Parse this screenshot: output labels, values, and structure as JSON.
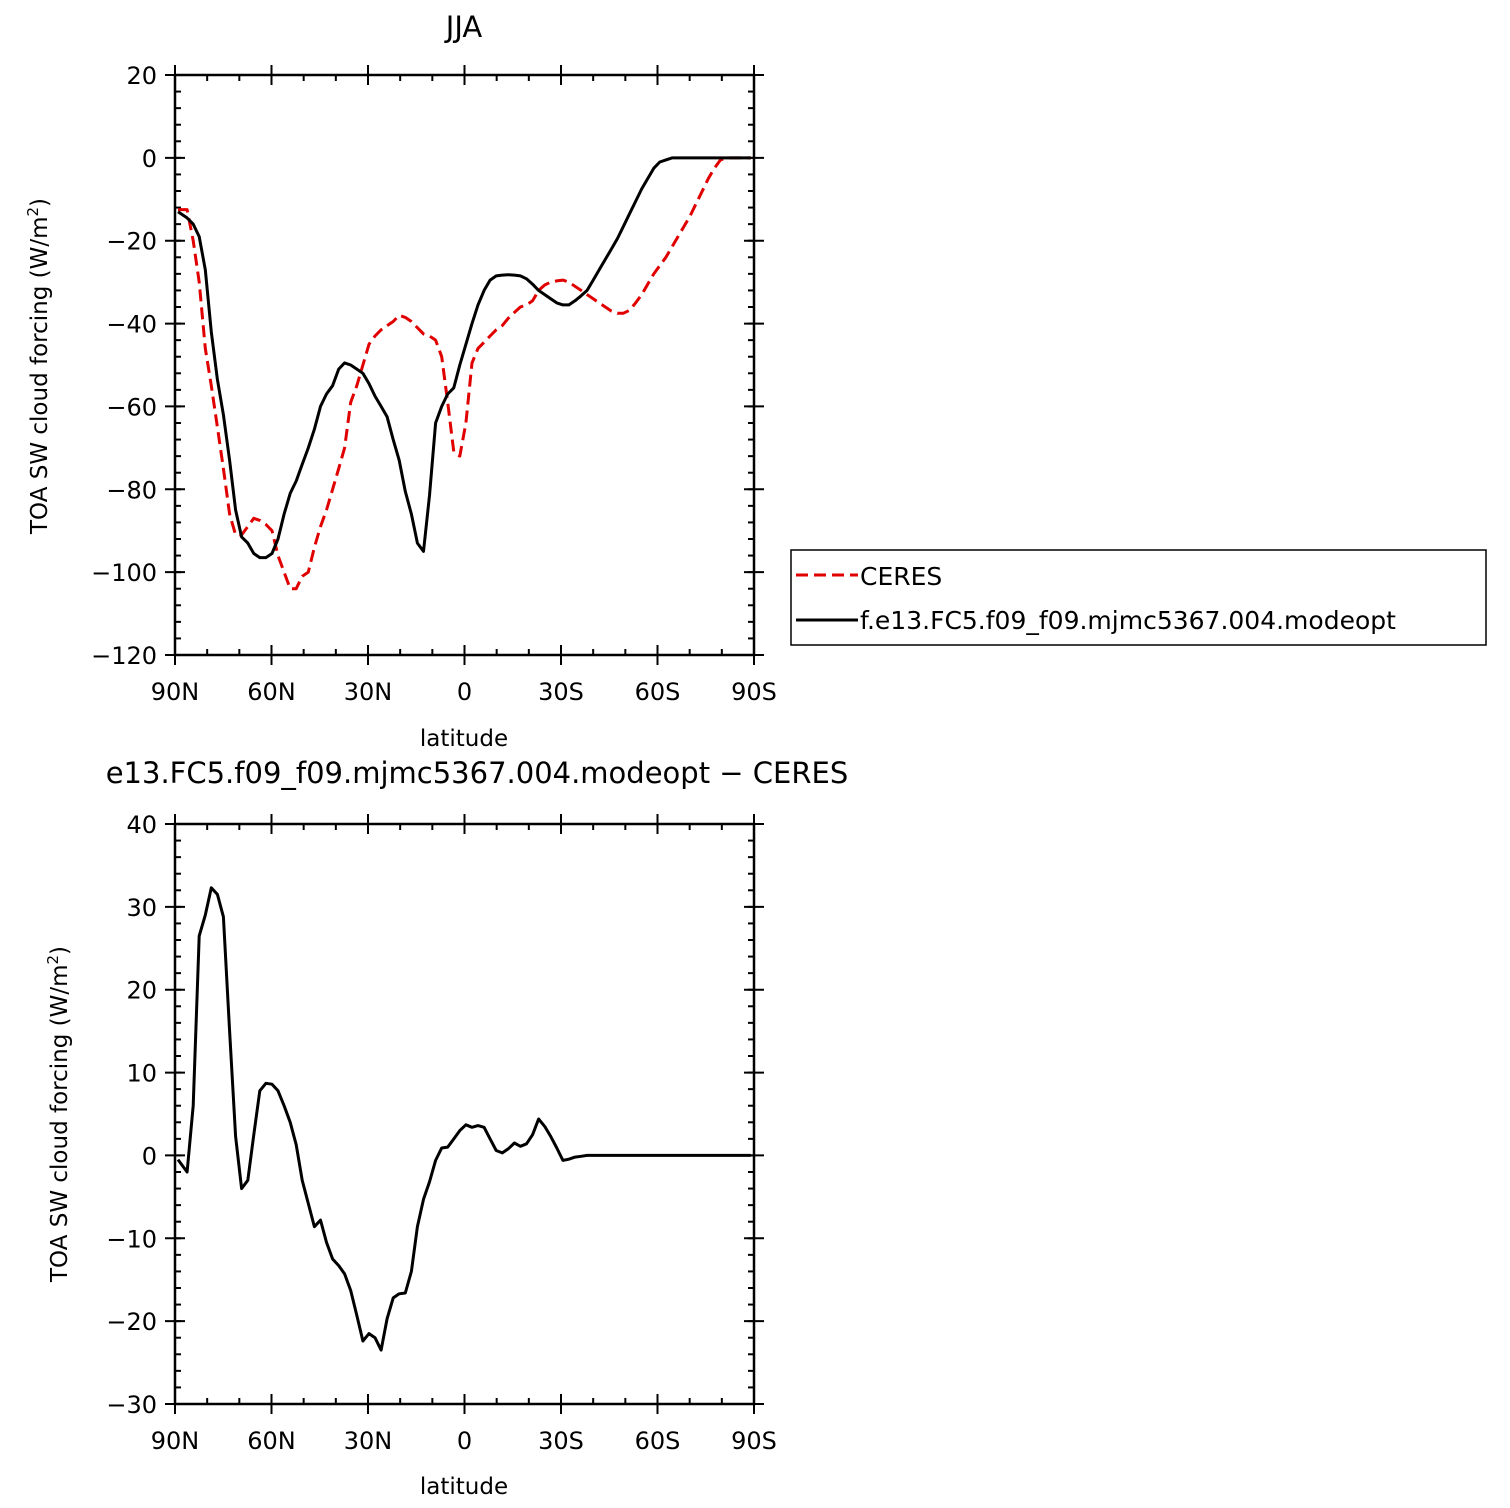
{
  "chart_data": [
    {
      "type": "line",
      "title": "JJA",
      "xlabel": "latitude",
      "ylabel": "TOA SW cloud forcing (W/m",
      "ylabel_sup": "2",
      "ylabel_close": ")",
      "xlim": [
        90,
        -90
      ],
      "ylim": [
        -120,
        20
      ],
      "xticks": [
        90,
        60,
        30,
        0,
        -30,
        -60,
        -90
      ],
      "xtick_labels": [
        "90N",
        "60N",
        "30N",
        "0",
        "30S",
        "60S",
        "90S"
      ],
      "yticks": [
        20,
        0,
        -20,
        -40,
        -60,
        -80,
        -100,
        -120
      ],
      "ytick_labels": [
        "20",
        "0",
        "−20",
        "−40",
        "−60",
        "−80",
        "−100",
        "−120"
      ],
      "grid": false,
      "legend": "right",
      "series": [
        {
          "name": "CERES",
          "color": "#e00000",
          "dash": "dashed",
          "x": [
            89.06,
            86.24,
            84.35,
            82.47,
            80.59,
            78.7,
            76.82,
            74.94,
            73.04,
            71.15,
            69.29,
            67.38,
            65.5,
            63.63,
            61.73,
            59.85,
            57.98,
            56.09,
            54.2,
            52.32,
            50.45,
            48.55,
            46.67,
            44.78,
            42.9,
            41.01,
            39.12,
            37.26,
            35.37,
            33.48,
            31.59,
            29.7,
            27.81,
            25.94,
            24.06,
            22.18,
            20.3,
            18.41,
            16.52,
            14.64,
            12.75,
            10.87,
            8.98,
            7.1,
            5.21,
            3.33,
            1.45,
            -0.44,
            -2.32,
            -4.2,
            -6.09,
            -7.97,
            -9.86,
            -11.74,
            -13.63,
            -15.51,
            -17.39,
            -19.28,
            -21.16,
            -23.05,
            -24.93,
            -26.81,
            -28.7,
            -30.58,
            -32.47,
            -34.35,
            -36.24,
            -38.12,
            -40.0,
            -41.89,
            -43.77,
            -45.66,
            -47.54,
            -49.42,
            -51.31,
            -53.19,
            -55.08,
            -56.96,
            -58.84,
            -60.73,
            -62.61,
            -64.5,
            -66.38,
            -68.27,
            -70.15,
            -72.03,
            -73.92,
            -75.8,
            -77.69,
            -79.57,
            -81.45,
            -83.34,
            -85.22,
            -87.11,
            -88.99
          ],
          "y": [
            -12.5,
            -12.5,
            -20,
            -30,
            -46,
            -55,
            -65,
            -75,
            -86,
            -91,
            -91,
            -89,
            -87,
            -87.5,
            -88.5,
            -90,
            -96,
            -100,
            -104,
            -104,
            -101,
            -100,
            -94,
            -89,
            -85,
            -80,
            -75,
            -70,
            -59,
            -55,
            -50,
            -45,
            -43,
            -41.5,
            -40.5,
            -39.5,
            -38,
            -38.5,
            -39.5,
            -41,
            -42.5,
            -43,
            -44,
            -48,
            -59,
            -71,
            -72,
            -64,
            -49.5,
            -46,
            -44.5,
            -43,
            -41.5,
            -40.5,
            -38.7,
            -37.3,
            -36,
            -35.5,
            -34.5,
            -32,
            -30.7,
            -30,
            -29.7,
            -29.5,
            -30,
            -31,
            -32,
            -33,
            -34,
            -35,
            -36,
            -37,
            -37.5,
            -37.5,
            -36.8,
            -35,
            -33,
            -30.5,
            -28,
            -26,
            -24,
            -21.5,
            -19,
            -16.5,
            -14,
            -11,
            -8,
            -5,
            -2.5,
            -0.5,
            0,
            0,
            0,
            0,
            0
          ]
        },
        {
          "name": "f.e13.FC5.f09_f09.mjmc5367.004.modeopt",
          "color": "#000000",
          "dash": "solid",
          "x": [
            89.06,
            86.24,
            84.35,
            82.47,
            80.59,
            78.7,
            76.82,
            74.94,
            73.04,
            71.15,
            69.29,
            67.38,
            65.5,
            63.63,
            61.73,
            59.85,
            57.98,
            56.09,
            54.2,
            52.32,
            50.45,
            48.55,
            46.67,
            44.78,
            42.9,
            41.01,
            39.12,
            37.26,
            35.37,
            33.48,
            31.59,
            29.7,
            27.81,
            25.94,
            24.06,
            22.18,
            20.3,
            18.41,
            16.52,
            14.64,
            12.75,
            10.87,
            8.98,
            7.1,
            5.21,
            3.33,
            1.45,
            -0.44,
            -2.32,
            -4.2,
            -6.09,
            -7.97,
            -9.86,
            -11.74,
            -13.63,
            -15.51,
            -17.39,
            -19.28,
            -21.16,
            -23.05,
            -24.93,
            -26.81,
            -28.7,
            -30.58,
            -32.47,
            -34.35,
            -36.24,
            -38.12,
            -40.0,
            -41.89,
            -43.77,
            -45.66,
            -47.54,
            -49.42,
            -51.31,
            -53.19,
            -55.08,
            -56.96,
            -58.84,
            -60.73,
            -62.61,
            -64.5,
            -66.38,
            -68.27,
            -70.15,
            -72.03,
            -73.92,
            -75.8,
            -77.69,
            -79.57,
            -81.45,
            -83.34,
            -85.22,
            -87.11,
            -88.99
          ],
          "y": [
            -13,
            -14.5,
            -16,
            -19,
            -27,
            -42,
            -53.5,
            -62,
            -73,
            -85,
            -91.5,
            -93,
            -95.5,
            -96.5,
            -96.5,
            -95.5,
            -92,
            -86,
            -81,
            -78,
            -74,
            -70,
            -65.5,
            -60,
            -57,
            -55,
            -51,
            -49.5,
            -50,
            -51,
            -52,
            -54.5,
            -57.5,
            -60,
            -62.5,
            -68,
            -73,
            -80.5,
            -86,
            -93,
            -95,
            -81.5,
            -64,
            -60,
            -57,
            -55.5,
            -50,
            -45,
            -40,
            -35.5,
            -32,
            -29.5,
            -28.5,
            -28.3,
            -28.2,
            -28.3,
            -28.5,
            -29.2,
            -30.5,
            -32,
            -33,
            -34,
            -35,
            -35.5,
            -35.5,
            -34.5,
            -33.3,
            -32,
            -29.5,
            -27,
            -24.5,
            -22,
            -19.5,
            -16.5,
            -13.5,
            -10.5,
            -7.5,
            -5,
            -2.5,
            -1,
            -0.5,
            0,
            0,
            0,
            0,
            0,
            0,
            0,
            0,
            0,
            0,
            0,
            0,
            0,
            0
          ]
        }
      ]
    },
    {
      "type": "line",
      "title": "e13.FC5.f09_f09.mjmc5367.004.modeopt − CERES",
      "xlabel": "latitude",
      "ylabel": "TOA SW cloud forcing (W/m",
      "ylabel_sup": "2",
      "ylabel_close": ")",
      "xlim": [
        90,
        -90
      ],
      "ylim": [
        -30,
        40
      ],
      "xticks": [
        90,
        60,
        30,
        0,
        -30,
        -60,
        -90
      ],
      "xtick_labels": [
        "90N",
        "60N",
        "30N",
        "0",
        "30S",
        "60S",
        "90S"
      ],
      "yticks": [
        40,
        30,
        20,
        10,
        0,
        -10,
        -20,
        -30
      ],
      "ytick_labels": [
        "40",
        "30",
        "20",
        "10",
        "0",
        "−10",
        "−20",
        "−30"
      ],
      "grid": false,
      "series": [
        {
          "name": "",
          "color": "#000000",
          "dash": "solid",
          "x": [
            89.06,
            86.24,
            84.35,
            82.47,
            80.59,
            78.7,
            76.82,
            74.94,
            73.04,
            71.15,
            69.29,
            67.38,
            65.5,
            63.63,
            61.73,
            59.85,
            57.98,
            56.09,
            54.2,
            52.32,
            50.45,
            48.55,
            46.67,
            44.78,
            42.9,
            41.01,
            39.12,
            37.26,
            35.37,
            33.48,
            31.59,
            29.7,
            27.81,
            25.94,
            24.06,
            22.18,
            20.3,
            18.41,
            16.52,
            14.64,
            12.75,
            10.87,
            8.98,
            7.1,
            5.21,
            3.33,
            1.45,
            -0.44,
            -2.32,
            -4.2,
            -6.09,
            -7.97,
            -9.86,
            -11.74,
            -13.63,
            -15.51,
            -17.39,
            -19.28,
            -21.16,
            -23.05,
            -24.93,
            -26.81,
            -28.7,
            -30.58,
            -32.47,
            -34.35,
            -36.24,
            -38.12,
            -40.0,
            -41.89,
            -43.77,
            -45.66,
            -47.54,
            -49.42,
            -51.31,
            -53.19,
            -55.08,
            -56.96,
            -58.84,
            -60.73,
            -62.61,
            -64.5,
            -66.38,
            -68.27,
            -70.15,
            -72.03,
            -73.92,
            -75.8,
            -77.69,
            -79.57,
            -81.45,
            -83.34,
            -85.22,
            -87.11,
            -88.99
          ],
          "y": [
            -0.5,
            -2,
            6,
            26.5,
            29,
            32.3,
            31.5,
            28.8,
            15,
            2.3,
            -4,
            -3,
            2.5,
            7.8,
            8.7,
            8.6,
            7.8,
            6,
            4,
            1.3,
            -3,
            -5.8,
            -8.6,
            -7.8,
            -10.5,
            -12.5,
            -13.3,
            -14.3,
            -16.3,
            -19.3,
            -22.4,
            -21.5,
            -22,
            -23.5,
            -19.7,
            -17.2,
            -16.7,
            -16.6,
            -14,
            -8.6,
            -5.3,
            -3.2,
            -0.6,
            0.9,
            1,
            2,
            3,
            3.7,
            3.4,
            3.6,
            3.4,
            2,
            0.6,
            0.3,
            0.8,
            1.5,
            1.1,
            1.4,
            2.5,
            4.4,
            3.5,
            2.3,
            0.9,
            -0.6,
            -0.45,
            -0.2,
            -0.1,
            0,
            0,
            0,
            0,
            0,
            0,
            0,
            0,
            0,
            0,
            0,
            0,
            0,
            0,
            0,
            0,
            0,
            0,
            0,
            0,
            0,
            0,
            0,
            0,
            0,
            0,
            0,
            0
          ]
        }
      ]
    }
  ]
}
